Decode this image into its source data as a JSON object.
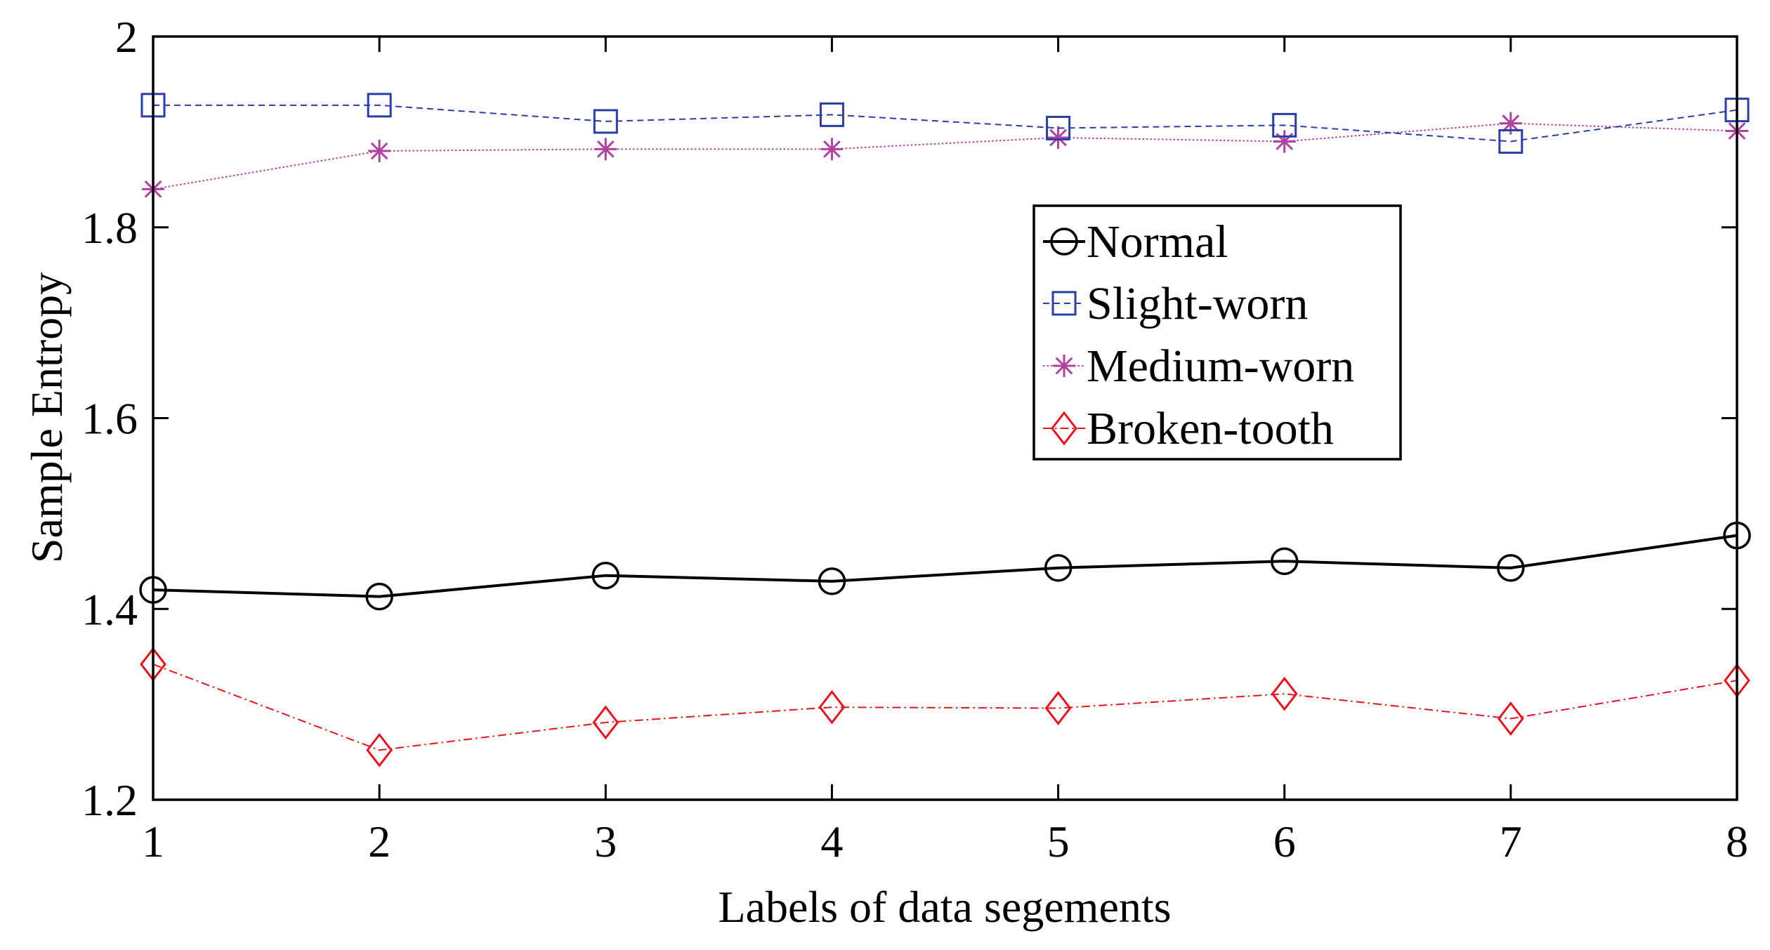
{
  "chart_data": {
    "type": "line",
    "title": "",
    "xlabel": "Labels of data segements",
    "ylabel": "Sample Entropy",
    "x": [
      1,
      2,
      3,
      4,
      5,
      6,
      7,
      8
    ],
    "xlim": [
      1,
      8
    ],
    "ylim": [
      1.2,
      2.0
    ],
    "xticks": [
      "1",
      "2",
      "3",
      "4",
      "5",
      "6",
      "7",
      "8"
    ],
    "yticks": [
      "1.2",
      "1.4",
      "1.6",
      "1.8",
      "2"
    ],
    "ytick_values": [
      1.2,
      1.4,
      1.6,
      1.8,
      2.0
    ],
    "grid": false,
    "legend_position": "upper-middle-right",
    "series": [
      {
        "name": "Normal",
        "color": "#000000",
        "marker": "circle",
        "line": "solid",
        "values": [
          1.42,
          1.413,
          1.435,
          1.429,
          1.443,
          1.45,
          1.443,
          1.477
        ]
      },
      {
        "name": "Slight-worn",
        "color": "#2b3ea8",
        "marker": "square",
        "line": "dashed",
        "values": [
          1.928,
          1.928,
          1.911,
          1.918,
          1.904,
          1.907,
          1.89,
          1.923
        ]
      },
      {
        "name": "Medium-worn",
        "color": "#b2409f",
        "marker": "asterisk",
        "line": "dotted",
        "values": [
          1.84,
          1.88,
          1.882,
          1.882,
          1.894,
          1.89,
          1.909,
          1.901
        ]
      },
      {
        "name": "Broken-tooth",
        "color": "#e8141b",
        "marker": "diamond",
        "line": "dashdot",
        "values": [
          1.342,
          1.252,
          1.281,
          1.297,
          1.296,
          1.311,
          1.285,
          1.325
        ]
      }
    ]
  }
}
